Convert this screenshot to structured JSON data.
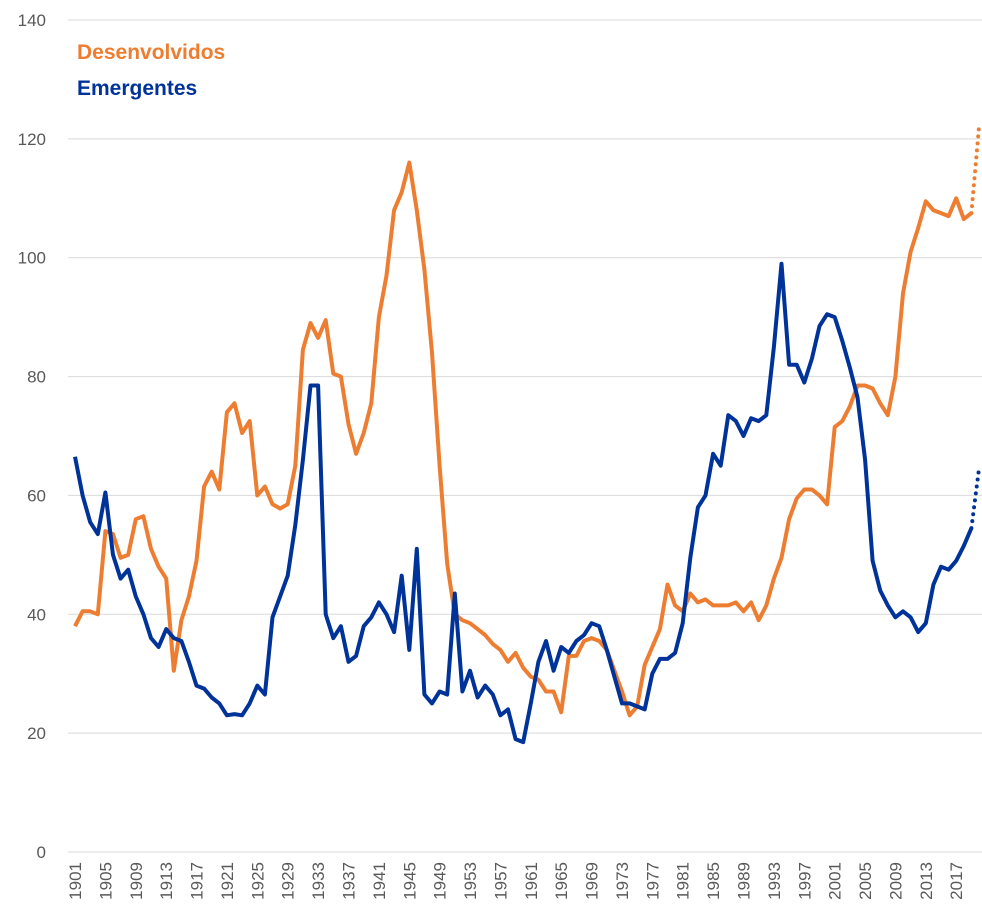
{
  "chart_data": {
    "type": "line",
    "categories": [
      "1901",
      null,
      null,
      null,
      "1905",
      null,
      null,
      null,
      "1909",
      null,
      null,
      null,
      "1913",
      null,
      null,
      null,
      "1917",
      null,
      null,
      null,
      "1921",
      null,
      null,
      null,
      "1925",
      null,
      null,
      null,
      "1929",
      null,
      null,
      null,
      "1933",
      null,
      null,
      null,
      "1937",
      null,
      null,
      null,
      "1941",
      null,
      null,
      null,
      "1945",
      null,
      null,
      null,
      "1949",
      null,
      null,
      null,
      "1953",
      null,
      null,
      null,
      "1957",
      null,
      null,
      null,
      "1961",
      null,
      null,
      null,
      "1965",
      null,
      null,
      null,
      "1969",
      null,
      null,
      null,
      "1973",
      null,
      null,
      null,
      "1977",
      null,
      null,
      null,
      "1981",
      null,
      null,
      null,
      "1985",
      null,
      null,
      null,
      "1989",
      null,
      null,
      null,
      "1993",
      null,
      null,
      null,
      "1997",
      null,
      null,
      null,
      "2001",
      null,
      null,
      null,
      "2005",
      null,
      null,
      null,
      "2009",
      null,
      null,
      null,
      "2013",
      null,
      null,
      null,
      "2017",
      null,
      null,
      null
    ],
    "series": [
      {
        "name": "Desenvolvidos",
        "color": "#ED7D31",
        "values": [
          38,
          40.5,
          40.5,
          40,
          54,
          53.5,
          49.5,
          50,
          56,
          56.5,
          51,
          48,
          46,
          30.5,
          39,
          43,
          49,
          61.5,
          64,
          61,
          74,
          75.5,
          70.5,
          72.5,
          60,
          61.5,
          58.5,
          57.8,
          58.5,
          65,
          84.5,
          89,
          86.5,
          89.5,
          80.5,
          80,
          72,
          67,
          70.5,
          75.5,
          90,
          97,
          108,
          111,
          116,
          108,
          98,
          84,
          65,
          48.5,
          40,
          39,
          38.5,
          37.5,
          36.5,
          35,
          34,
          32,
          33.5,
          31,
          29.5,
          29,
          27,
          27,
          23.5,
          33,
          33,
          35.5,
          36,
          35.5,
          34,
          30.5,
          27,
          23,
          24.5,
          31.5,
          34.5,
          37.5,
          45,
          41.5,
          40.5,
          43.5,
          42,
          42.5,
          41.5,
          41.5,
          41.5,
          42,
          40.5,
          42,
          39,
          41.5,
          46,
          49.5,
          56,
          59.5,
          61,
          61,
          60,
          58.5,
          71.5,
          72.5,
          75,
          78.5,
          78.5,
          78,
          75.5,
          73.5,
          80,
          94,
          101,
          105,
          109.5,
          108,
          107.5,
          107,
          110,
          106.5,
          107.5,
          122
        ]
      },
      {
        "name": "Emergentes",
        "color": "#003399",
        "values": [
          66.5,
          60,
          55.5,
          53.5,
          60.5,
          50,
          46,
          47.5,
          43,
          40,
          36,
          34.5,
          37.5,
          36,
          35.5,
          32,
          28,
          27.5,
          26,
          25,
          23,
          23.2,
          23,
          25,
          28,
          26.5,
          39.5,
          43,
          46.5,
          55,
          66,
          78.5,
          78.5,
          40,
          36,
          38,
          32,
          33,
          38,
          39.5,
          42,
          40,
          37,
          46.5,
          34,
          51,
          26.5,
          25,
          27,
          26.5,
          43.5,
          27,
          30.5,
          26,
          28,
          26.5,
          23,
          24,
          19,
          18.5,
          25,
          32,
          35.5,
          30.5,
          34.5,
          33.5,
          35.5,
          36.5,
          38.5,
          38,
          34,
          29.5,
          25,
          25,
          24.5,
          24,
          30,
          32.5,
          32.5,
          33.5,
          38.5,
          49.5,
          58,
          60,
          67,
          65,
          73.5,
          72.5,
          70,
          73,
          72.5,
          73.5,
          85,
          99,
          82,
          82,
          79,
          83,
          88.5,
          90.5,
          90,
          86,
          81.5,
          76.5,
          66,
          49,
          44,
          41.5,
          39.5,
          40.5,
          39.5,
          37,
          38.5,
          45,
          48,
          47.5,
          49,
          51.5,
          54.5,
          64.5
        ]
      }
    ],
    "dotted_last_segment": true,
    "ylim": [
      0,
      140
    ],
    "yticks": [
      0,
      20,
      40,
      60,
      80,
      100,
      120,
      140
    ],
    "grid": true,
    "legend": "top-left"
  }
}
